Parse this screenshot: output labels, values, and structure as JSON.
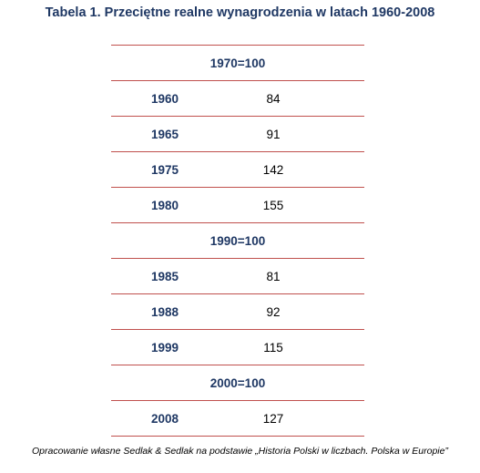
{
  "title": "Tabela 1. Przeciętne realne wynagrodzenia w latach 1960-2008",
  "table": {
    "sections": [
      {
        "base": "1970=100",
        "rows": [
          {
            "year": "1960",
            "value": "84"
          },
          {
            "year": "1965",
            "value": "91"
          },
          {
            "year": "1975",
            "value": "142"
          },
          {
            "year": "1980",
            "value": "155"
          }
        ]
      },
      {
        "base": "1990=100",
        "rows": [
          {
            "year": "1985",
            "value": "81"
          },
          {
            "year": "1988",
            "value": "92"
          },
          {
            "year": "1999",
            "value": "115"
          }
        ]
      },
      {
        "base": "2000=100",
        "rows": [
          {
            "year": "2008",
            "value": "127"
          }
        ]
      }
    ]
  },
  "colors": {
    "accent_text": "#1f3864",
    "rule_lines": "#c0504d"
  },
  "footnote": "Opracowanie własne Sedlak & Sedlak na podstawie „Historia Polski w liczbach. Polska w Europie”"
}
